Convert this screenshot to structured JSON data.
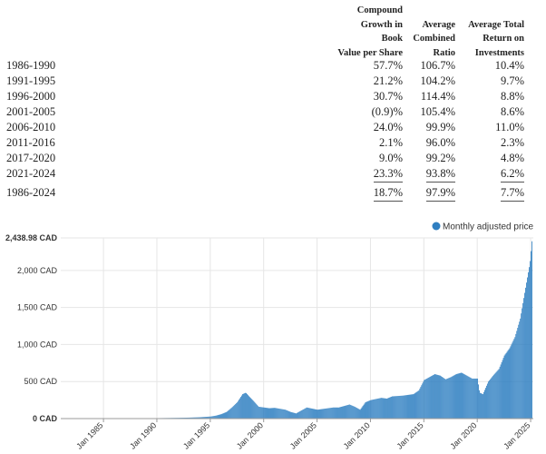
{
  "table": {
    "headers": [
      [
        "Compound",
        "Growth in",
        "Book",
        "Value per Share"
      ],
      [
        "Average",
        "Combined",
        "Ratio"
      ],
      [
        "Average Total",
        "Return on",
        "Investments"
      ]
    ],
    "rows": [
      {
        "period": "1986-1990",
        "bvps": "57.7%",
        "ratio": "106.7%",
        "roi": "10.4%"
      },
      {
        "period": "1991-1995",
        "bvps": "21.2%",
        "ratio": "104.2%",
        "roi": "9.7%"
      },
      {
        "period": "1996-2000",
        "bvps": "30.7%",
        "ratio": "114.4%",
        "roi": "8.8%"
      },
      {
        "period": "2001-2005",
        "bvps": "(0.9)%",
        "ratio": "105.4%",
        "roi": "8.6%"
      },
      {
        "period": "2006-2010",
        "bvps": "24.0%",
        "ratio": "99.9%",
        "roi": "11.0%"
      },
      {
        "period": "2011-2016",
        "bvps": "2.1%",
        "ratio": "96.0%",
        "roi": "2.3%"
      },
      {
        "period": "2017-2020",
        "bvps": "9.0%",
        "ratio": "99.2%",
        "roi": "4.8%"
      },
      {
        "period": "2021-2024",
        "bvps": "23.3%",
        "ratio": "93.8%",
        "roi": "6.2%"
      },
      {
        "period": "1986-2024",
        "bvps": "18.7%",
        "ratio": "97.9%",
        "roi": "7.7%"
      }
    ]
  },
  "chart_data": {
    "type": "bar",
    "title": "",
    "legend": "Monthly adjusted price",
    "legend_position": "top-right",
    "color": "#2f7fc1",
    "ylim": [
      0,
      2438.98
    ],
    "yticks": [
      {
        "value": 0,
        "label": "0 CAD"
      },
      {
        "value": 500,
        "label": "500 CAD"
      },
      {
        "value": 1000,
        "label": "1,000 CAD"
      },
      {
        "value": 1500,
        "label": "1,500 CAD"
      },
      {
        "value": 2000,
        "label": "2,000 CAD"
      },
      {
        "value": 2438.98,
        "label": "2,438.98 CAD"
      }
    ],
    "xlim": [
      1981.0,
      2025.25
    ],
    "xticks": [
      {
        "value": 1985,
        "label": "Jan 1985"
      },
      {
        "value": 1990,
        "label": "Jan 1990"
      },
      {
        "value": 1995,
        "label": "Jan 1995"
      },
      {
        "value": 2000,
        "label": "Jan 2000"
      },
      {
        "value": 2005,
        "label": "Jan 2005"
      },
      {
        "value": 2010,
        "label": "Jan 2010"
      },
      {
        "value": 2015,
        "label": "Jan 2015"
      },
      {
        "value": 2020,
        "label": "Jan 2020"
      },
      {
        "value": 2025,
        "label": "Jan 2025"
      }
    ],
    "series": [
      {
        "name": "Monthly adjusted price",
        "x": [
          1981,
          1983,
          1985,
          1986,
          1988,
          1990,
          1991,
          1992,
          1993,
          1994,
          1995,
          1995.5,
          1996,
          1996.5,
          1997,
          1997.5,
          1998,
          1998.3,
          1998.6,
          1999,
          1999.5,
          2000,
          2000.5,
          2001,
          2002,
          2002.5,
          2003,
          2004,
          2005,
          2006,
          2006.5,
          2007,
          2008,
          2008.5,
          2009,
          2009.5,
          2010,
          2011,
          2011.5,
          2012,
          2013,
          2014,
          2014.5,
          2015,
          2015.5,
          2016,
          2016.5,
          2017,
          2017.5,
          2018,
          2018.5,
          2019,
          2019.5,
          2020,
          2020.2,
          2020.5,
          2021,
          2021.5,
          2022,
          2022.5,
          2023,
          2023.5,
          2024,
          2024.3,
          2024.6,
          2024.9,
          2025.1
        ],
        "y": [
          0,
          0,
          2,
          3,
          4,
          6,
          8,
          10,
          13,
          18,
          28,
          40,
          60,
          90,
          150,
          220,
          330,
          350,
          300,
          240,
          160,
          150,
          140,
          145,
          120,
          90,
          70,
          150,
          120,
          140,
          150,
          150,
          190,
          160,
          120,
          220,
          250,
          280,
          270,
          300,
          310,
          330,
          380,
          520,
          560,
          600,
          580,
          530,
          560,
          600,
          620,
          580,
          540,
          540,
          350,
          330,
          500,
          590,
          670,
          850,
          950,
          1100,
          1350,
          1600,
          1850,
          2100,
          2420
        ]
      }
    ]
  }
}
